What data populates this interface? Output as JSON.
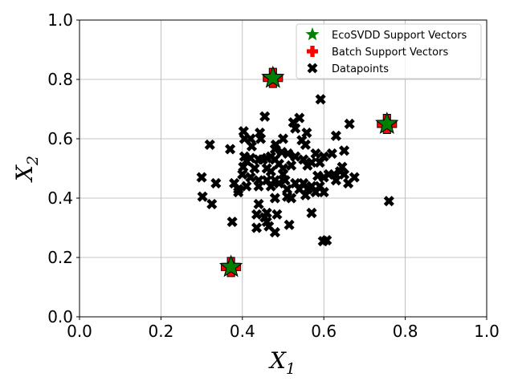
{
  "chart_data": {
    "type": "scatter",
    "xlabel": "X",
    "xlabel_sub": "1",
    "ylabel": "X",
    "ylabel_sub": "2",
    "xlim": [
      0.0,
      1.0
    ],
    "ylim": [
      0.0,
      1.0
    ],
    "xticks": [
      "0.0",
      "0.2",
      "0.4",
      "0.6",
      "0.8",
      "1.0"
    ],
    "yticks": [
      "0.0",
      "0.2",
      "0.4",
      "0.6",
      "0.8",
      "1.0"
    ],
    "xtick_values": [
      0.0,
      0.2,
      0.4,
      0.6,
      0.8,
      1.0
    ],
    "ytick_values": [
      0.0,
      0.2,
      0.4,
      0.6,
      0.8,
      1.0
    ],
    "grid": true,
    "legend_position": "top-right",
    "series": [
      {
        "name": "EcoSVDD Support Vectors",
        "marker": "star",
        "color": "#008000",
        "points": [
          [
            0.475,
            0.805
          ],
          [
            0.755,
            0.65
          ],
          [
            0.372,
            0.168
          ]
        ]
      },
      {
        "name": "Batch Support Vectors",
        "marker": "plus",
        "color": "#ff0000",
        "points": [
          [
            0.475,
            0.805
          ],
          [
            0.755,
            0.65
          ],
          [
            0.372,
            0.168
          ]
        ]
      },
      {
        "name": "Datapoints",
        "marker": "x",
        "color": "#000000",
        "points": [
          [
            0.475,
            0.805
          ],
          [
            0.755,
            0.65
          ],
          [
            0.372,
            0.168
          ],
          [
            0.592,
            0.733
          ],
          [
            0.455,
            0.675
          ],
          [
            0.54,
            0.67
          ],
          [
            0.663,
            0.65
          ],
          [
            0.525,
            0.655
          ],
          [
            0.53,
            0.635
          ],
          [
            0.558,
            0.62
          ],
          [
            0.443,
            0.62
          ],
          [
            0.403,
            0.625
          ],
          [
            0.405,
            0.6
          ],
          [
            0.42,
            0.6
          ],
          [
            0.445,
            0.6
          ],
          [
            0.5,
            0.6
          ],
          [
            0.546,
            0.595
          ],
          [
            0.63,
            0.61
          ],
          [
            0.32,
            0.58
          ],
          [
            0.37,
            0.565
          ],
          [
            0.423,
            0.575
          ],
          [
            0.482,
            0.58
          ],
          [
            0.48,
            0.565
          ],
          [
            0.555,
            0.58
          ],
          [
            0.65,
            0.56
          ],
          [
            0.497,
            0.555
          ],
          [
            0.512,
            0.55
          ],
          [
            0.53,
            0.54
          ],
          [
            0.55,
            0.53
          ],
          [
            0.58,
            0.55
          ],
          [
            0.6,
            0.54
          ],
          [
            0.62,
            0.55
          ],
          [
            0.405,
            0.54
          ],
          [
            0.41,
            0.525
          ],
          [
            0.42,
            0.535
          ],
          [
            0.44,
            0.53
          ],
          [
            0.45,
            0.53
          ],
          [
            0.46,
            0.535
          ],
          [
            0.47,
            0.54
          ],
          [
            0.48,
            0.53
          ],
          [
            0.49,
            0.515
          ],
          [
            0.5,
            0.5
          ],
          [
            0.52,
            0.51
          ],
          [
            0.56,
            0.51
          ],
          [
            0.57,
            0.52
          ],
          [
            0.59,
            0.52
          ],
          [
            0.645,
            0.505
          ],
          [
            0.64,
            0.49
          ],
          [
            0.402,
            0.505
          ],
          [
            0.43,
            0.5
          ],
          [
            0.46,
            0.5
          ],
          [
            0.47,
            0.49
          ],
          [
            0.5,
            0.48
          ],
          [
            0.505,
            0.46
          ],
          [
            0.585,
            0.475
          ],
          [
            0.6,
            0.47
          ],
          [
            0.612,
            0.48
          ],
          [
            0.625,
            0.48
          ],
          [
            0.65,
            0.48
          ],
          [
            0.675,
            0.47
          ],
          [
            0.3,
            0.47
          ],
          [
            0.4,
            0.48
          ],
          [
            0.42,
            0.47
          ],
          [
            0.44,
            0.46
          ],
          [
            0.46,
            0.46
          ],
          [
            0.48,
            0.46
          ],
          [
            0.49,
            0.45
          ],
          [
            0.53,
            0.45
          ],
          [
            0.55,
            0.45
          ],
          [
            0.57,
            0.44
          ],
          [
            0.59,
            0.44
          ],
          [
            0.63,
            0.46
          ],
          [
            0.66,
            0.45
          ],
          [
            0.335,
            0.45
          ],
          [
            0.38,
            0.45
          ],
          [
            0.39,
            0.43
          ],
          [
            0.41,
            0.44
          ],
          [
            0.44,
            0.44
          ],
          [
            0.47,
            0.44
          ],
          [
            0.51,
            0.43
          ],
          [
            0.54,
            0.43
          ],
          [
            0.56,
            0.43
          ],
          [
            0.58,
            0.42
          ],
          [
            0.6,
            0.42
          ],
          [
            0.39,
            0.42
          ],
          [
            0.51,
            0.405
          ],
          [
            0.52,
            0.4
          ],
          [
            0.555,
            0.41
          ],
          [
            0.302,
            0.405
          ],
          [
            0.325,
            0.38
          ],
          [
            0.44,
            0.38
          ],
          [
            0.48,
            0.4
          ],
          [
            0.76,
            0.39
          ],
          [
            0.57,
            0.35
          ],
          [
            0.435,
            0.345
          ],
          [
            0.46,
            0.35
          ],
          [
            0.485,
            0.345
          ],
          [
            0.455,
            0.335
          ],
          [
            0.375,
            0.32
          ],
          [
            0.46,
            0.32
          ],
          [
            0.465,
            0.305
          ],
          [
            0.435,
            0.3
          ],
          [
            0.48,
            0.285
          ],
          [
            0.515,
            0.31
          ],
          [
            0.598,
            0.255
          ],
          [
            0.607,
            0.258
          ]
        ]
      }
    ]
  }
}
